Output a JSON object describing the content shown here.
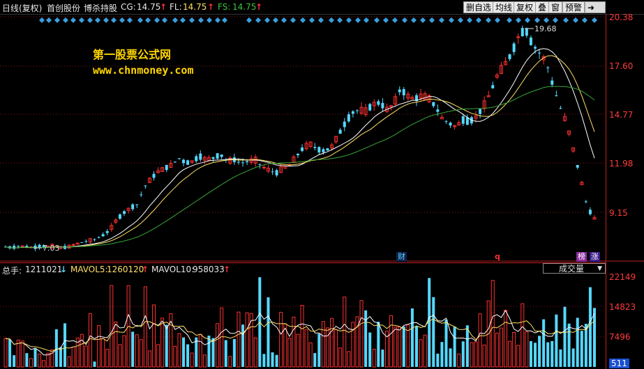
{
  "header": {
    "period": "日线(复权)",
    "stock_name": "首创股份",
    "indicator": "博杀持股",
    "cg_label": "CG:",
    "cg_value": "14.75",
    "fl_label": "FL:",
    "fl_value": "14.75",
    "fs_label": "FS:",
    "fs_value": "14.75",
    "arrow_up": "↑",
    "arrow_down": "↓"
  },
  "toolbar": {
    "edit_watchlist": "删自选",
    "ma": "均线",
    "adjust": "复权",
    "overlay": "叠",
    "window": "窗",
    "warning": "预警",
    "arrow_btn": "➜"
  },
  "watermark": {
    "title": "第一股票公式网",
    "url": "www.chnmoney.com"
  },
  "price_axis": {
    "ticks": [
      "20.38",
      "17.60",
      "14.77",
      "11.98",
      "9.15"
    ]
  },
  "annotations": {
    "high_label": "19.68",
    "low_label": "7.03"
  },
  "tags": {
    "finance": "财",
    "q": "q",
    "rank": "榜",
    "limit_up": "涨"
  },
  "volume": {
    "total_label": "总手:",
    "total_value": "1211021",
    "mavol5_label": "MAVOL5:",
    "mavol5_value": "1260120",
    "mavol10_label": "MAVOL10:",
    "mavol10_value": "958033",
    "indicator_select": "成交量",
    "axis_ticks": [
      "22149",
      "14823",
      "7496",
      "511"
    ]
  },
  "colors": {
    "up": "#ff3030",
    "down": "#55d8ff",
    "ma_white": "#ffffff",
    "ma_yellow": "#ffe066",
    "ma_green": "#3aa63a",
    "diamond": "#3aa0e0",
    "watermark": "#ffd400"
  },
  "chart_data": [
    {
      "type": "candlestick",
      "title": "",
      "ylim": [
        7.03,
        20.38
      ],
      "y_ticks": [
        20.38,
        17.6,
        14.77,
        11.98,
        9.15
      ],
      "high": 19.68,
      "low": 7.03,
      "trend": [
        7.05,
        7.0,
        7.1,
        7.05,
        7.0,
        7.1,
        7.05,
        7.1,
        7.0,
        7.03,
        7.2,
        7.3,
        7.4,
        7.5,
        7.7,
        8.0,
        8.6,
        9.0,
        9.3,
        9.5,
        10.5,
        11.0,
        11.4,
        11.6,
        11.8,
        12.2,
        11.9,
        12.0,
        12.3,
        12.1,
        12.2,
        12.4,
        12.0,
        12.1,
        11.9,
        12.0,
        12.1,
        11.7,
        11.5,
        11.3,
        11.6,
        11.8,
        12.3,
        12.8,
        13.0,
        12.7,
        12.6,
        12.8,
        13.5,
        14.2,
        14.8,
        15.0,
        14.9,
        15.3,
        15.4,
        15.0,
        15.3,
        16.2,
        15.8,
        15.6,
        15.8,
        15.7,
        15.2,
        14.5,
        14.2,
        14.0,
        14.4,
        14.3,
        14.6,
        15.2,
        16.0,
        17.0,
        17.6,
        18.2,
        19.2,
        19.68,
        18.8,
        18.3,
        17.8,
        16.4,
        15.2,
        14.2,
        12.6,
        11.0,
        9.3,
        8.7
      ]
    },
    {
      "type": "bar",
      "title": "",
      "ylim": [
        511,
        22149
      ],
      "y_ticks": [
        22149,
        14823,
        7496,
        511
      ],
      "series": [
        {
          "name": "MAVOL5",
          "value": 1260120
        },
        {
          "name": "MAVOL10",
          "value": 958033
        }
      ]
    }
  ]
}
